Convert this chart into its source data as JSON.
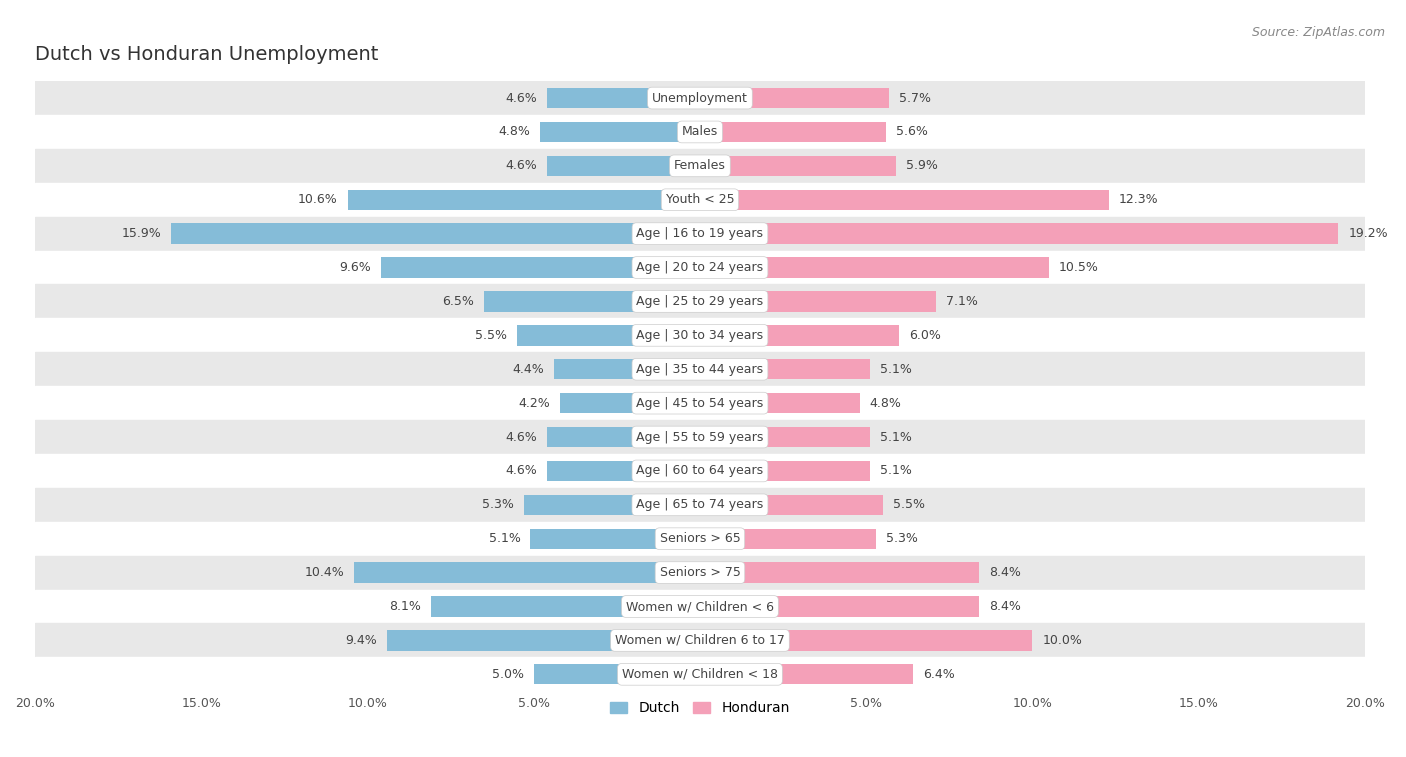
{
  "title": "Dutch vs Honduran Unemployment",
  "source": "Source: ZipAtlas.com",
  "categories": [
    "Unemployment",
    "Males",
    "Females",
    "Youth < 25",
    "Age | 16 to 19 years",
    "Age | 20 to 24 years",
    "Age | 25 to 29 years",
    "Age | 30 to 34 years",
    "Age | 35 to 44 years",
    "Age | 45 to 54 years",
    "Age | 55 to 59 years",
    "Age | 60 to 64 years",
    "Age | 65 to 74 years",
    "Seniors > 65",
    "Seniors > 75",
    "Women w/ Children < 6",
    "Women w/ Children 6 to 17",
    "Women w/ Children < 18"
  ],
  "dutch": [
    4.6,
    4.8,
    4.6,
    10.6,
    15.9,
    9.6,
    6.5,
    5.5,
    4.4,
    4.2,
    4.6,
    4.6,
    5.3,
    5.1,
    10.4,
    8.1,
    9.4,
    5.0
  ],
  "honduran": [
    5.7,
    5.6,
    5.9,
    12.3,
    19.2,
    10.5,
    7.1,
    6.0,
    5.1,
    4.8,
    5.1,
    5.1,
    5.5,
    5.3,
    8.4,
    8.4,
    10.0,
    6.4
  ],
  "dutch_color": "#85bcd8",
  "honduran_color": "#f4a0b8",
  "bg_color": "#ffffff",
  "row_color_light": "#ffffff",
  "row_color_dark": "#e8e8e8",
  "bar_height": 0.6,
  "xlim": 20.0,
  "legend_dutch": "Dutch",
  "legend_honduran": "Honduran",
  "label_fontsize": 9,
  "category_fontsize": 9,
  "title_fontsize": 14,
  "source_fontsize": 9
}
